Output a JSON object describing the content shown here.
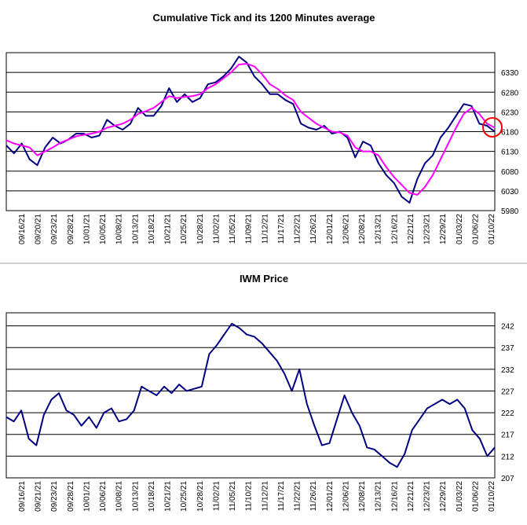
{
  "chart_data": [
    {
      "type": "line",
      "title": "Cumulative Tick and its 1200 Minutes average",
      "xlabel": "",
      "ylabel": "",
      "ylim": [
        5980,
        6380
      ],
      "yticks": [
        5980,
        6030,
        6080,
        6130,
        6180,
        6230,
        6280,
        6330
      ],
      "x_tick_labels": [
        "09/16/21",
        "09/20/21",
        "09/23/21",
        "09/28/21",
        "10/01/21",
        "10/05/21",
        "10/08/21",
        "10/13/21",
        "10/18/21",
        "10/21/21",
        "10/25/21",
        "10/28/21",
        "11/02/21",
        "11/05/21",
        "11/09/21",
        "11/12/21",
        "11/17/21",
        "11/22/21",
        "11/26/21",
        "12/01/21",
        "12/06/21",
        "12/08/21",
        "12/13/21",
        "12/16/21",
        "12/21/21",
        "12/23/21",
        "12/29/21",
        "01/03/22",
        "01/06/22",
        "01/10/22"
      ],
      "grid": "horizontal",
      "annotation": "red circle on latest values",
      "series": [
        {
          "color": "#000080",
          "values": [
            6145,
            6125,
            6150,
            6110,
            6095,
            6140,
            6165,
            6150,
            6160,
            6175,
            6175,
            6165,
            6170,
            6210,
            6195,
            6185,
            6200,
            6240,
            6220,
            6220,
            6245,
            6290,
            6255,
            6275,
            6255,
            6265,
            6300,
            6305,
            6320,
            6340,
            6370,
            6355,
            6320,
            6300,
            6275,
            6275,
            6260,
            6250,
            6200,
            6190,
            6185,
            6195,
            6175,
            6180,
            6165,
            6115,
            6155,
            6145,
            6100,
            6070,
            6050,
            6015,
            6000,
            6060,
            6100,
            6120,
            6165,
            6190,
            6220,
            6250,
            6245,
            6200,
            6195,
            6180
          ]
        },
        {
          "color": "#ff00ff",
          "values": [
            6158,
            6150,
            6145,
            6140,
            6120,
            6130,
            6140,
            6152,
            6160,
            6168,
            6172,
            6175,
            6180,
            6190,
            6195,
            6200,
            6210,
            6225,
            6232,
            6240,
            6255,
            6270,
            6265,
            6268,
            6270,
            6275,
            6290,
            6300,
            6315,
            6330,
            6350,
            6352,
            6345,
            6325,
            6300,
            6288,
            6272,
            6260,
            6230,
            6215,
            6200,
            6190,
            6180,
            6178,
            6170,
            6140,
            6130,
            6130,
            6120,
            6090,
            6065,
            6045,
            6025,
            6020,
            6040,
            6070,
            6110,
            6150,
            6190,
            6225,
            6240,
            6225,
            6200,
            6190
          ]
        }
      ]
    },
    {
      "type": "line",
      "title": "IWM Price",
      "xlabel": "",
      "ylabel": "",
      "ylim": [
        207,
        245
      ],
      "yticks": [
        207,
        212,
        217,
        222,
        227,
        232,
        237,
        242
      ],
      "x_tick_labels": [
        "09/16/21",
        "09/21/21",
        "09/23/21",
        "09/28/21",
        "10/01/21",
        "10/06/21",
        "10/08/21",
        "10/13/21",
        "10/18/21",
        "10/21/21",
        "10/25/21",
        "10/28/21",
        "11/02/21",
        "11/05/21",
        "11/10/21",
        "11/12/21",
        "11/17/21",
        "11/22/21",
        "11/26/21",
        "12/01/21",
        "12/06/21",
        "12/08/21",
        "12/13/21",
        "12/16/21",
        "12/21/21",
        "12/23/21",
        "12/29/21",
        "01/03/22",
        "01/06/22",
        "01/10/22"
      ],
      "grid": "horizontal",
      "series": [
        {
          "color": "#000080",
          "values": [
            221,
            220,
            222.5,
            216,
            214.5,
            221.5,
            225,
            226.5,
            222.5,
            221.5,
            219,
            221,
            218.5,
            222,
            223,
            220,
            220.5,
            222.5,
            228,
            227,
            226,
            228,
            226.5,
            228.5,
            227,
            227.5,
            228,
            235.5,
            237.5,
            240,
            242.5,
            241.5,
            240,
            239.5,
            238,
            236,
            234,
            231,
            227,
            232,
            224,
            219,
            214.5,
            215,
            220.5,
            226,
            222,
            219,
            214,
            213.5,
            212,
            210.5,
            209.5,
            212.5,
            218,
            220.5,
            223,
            224,
            225,
            224,
            225,
            223,
            218,
            216,
            212,
            214
          ]
        }
      ]
    }
  ]
}
